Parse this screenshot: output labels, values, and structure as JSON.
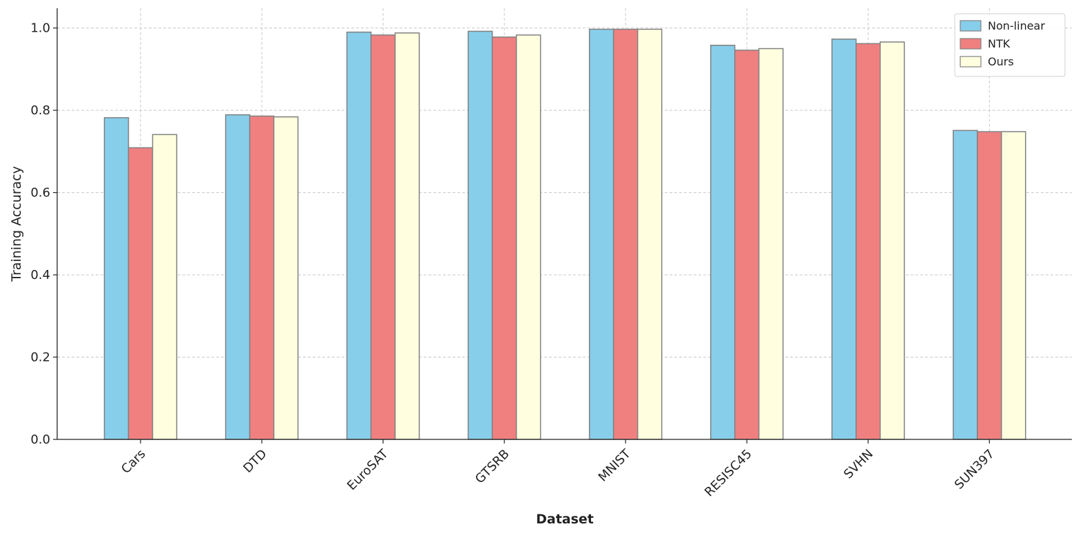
{
  "chart_data": {
    "type": "bar",
    "title": "",
    "xlabel": "Dataset",
    "ylabel": "Training Accuracy",
    "categories": [
      "Cars",
      "DTD",
      "EuroSAT",
      "GTSRB",
      "MNIST",
      "RESISC45",
      "SVHN",
      "SUN397"
    ],
    "series": [
      {
        "name": "Non-linear",
        "color": "#87CEEB",
        "values": [
          0.782,
          0.789,
          0.99,
          0.992,
          0.997,
          0.958,
          0.973,
          0.751
        ]
      },
      {
        "name": "NTK",
        "color": "#F08080",
        "values": [
          0.709,
          0.786,
          0.983,
          0.978,
          0.997,
          0.946,
          0.962,
          0.748
        ]
      },
      {
        "name": "Ours",
        "color": "#FFFFE0",
        "values": [
          0.741,
          0.784,
          0.988,
          0.983,
          0.997,
          0.95,
          0.966,
          0.748
        ]
      }
    ],
    "ylim": [
      0,
      1.048
    ],
    "yticks": [
      "0.0",
      "0.2",
      "0.4",
      "0.6",
      "0.8",
      "1.0"
    ],
    "grid": true,
    "legend_placement": "top-right",
    "bar_edge_color": "#808080"
  }
}
